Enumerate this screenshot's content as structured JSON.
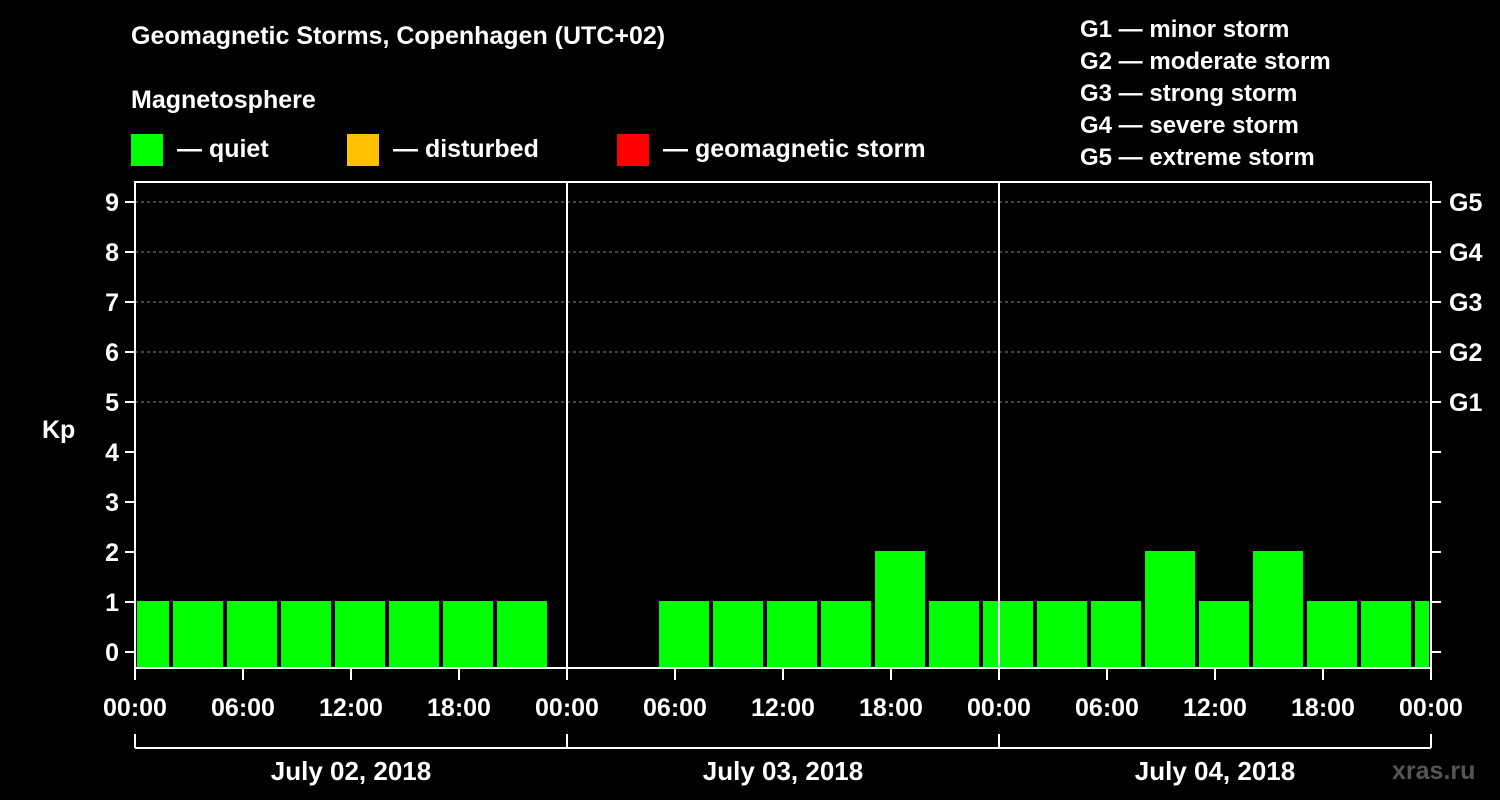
{
  "title": "Geomagnetic Storms, Copenhagen (UTC+02)",
  "magnetosphere": {
    "title": "Magnetosphere",
    "legend": [
      {
        "label": "— quiet",
        "color": "#00ff00"
      },
      {
        "label": "— disturbed",
        "color": "#ffc000"
      },
      {
        "label": "— geomagnetic storm",
        "color": "#ff0000"
      }
    ]
  },
  "storm_scale": [
    "G1 — minor storm",
    "G2 — moderate storm",
    "G3 — strong storm",
    "G4 — severe storm",
    "G5 — extreme storm"
  ],
  "watermark": "xras.ru",
  "chart_data": {
    "type": "bar",
    "title": "Geomagnetic Storms, Copenhagen (UTC+02)",
    "ylabel": "Kp",
    "ylim": [
      0,
      9
    ],
    "y_ticks": [
      "0",
      "1",
      "2",
      "3",
      "4",
      "5",
      "6",
      "7",
      "8",
      "9"
    ],
    "right_axis_labels": [
      {
        "kp": 5,
        "label": "G1"
      },
      {
        "kp": 6,
        "label": "G2"
      },
      {
        "kp": 7,
        "label": "G3"
      },
      {
        "kp": 8,
        "label": "G4"
      },
      {
        "kp": 9,
        "label": "G5"
      }
    ],
    "x_range_hours": [
      0,
      72
    ],
    "x_tick_labels": [
      "00:00",
      "06:00",
      "12:00",
      "18:00",
      "00:00",
      "06:00",
      "12:00",
      "18:00",
      "00:00",
      "06:00",
      "12:00",
      "18:00",
      "00:00"
    ],
    "days": [
      "July 02, 2018",
      "July 03, 2018",
      "July 04, 2018"
    ],
    "bars": [
      {
        "start": 0,
        "end": 2,
        "kp": 1
      },
      {
        "start": 2,
        "end": 5,
        "kp": 1
      },
      {
        "start": 5,
        "end": 8,
        "kp": 1
      },
      {
        "start": 8,
        "end": 11,
        "kp": 1
      },
      {
        "start": 11,
        "end": 14,
        "kp": 1
      },
      {
        "start": 14,
        "end": 17,
        "kp": 1
      },
      {
        "start": 17,
        "end": 20,
        "kp": 1
      },
      {
        "start": 20,
        "end": 23,
        "kp": 1
      },
      {
        "start": 29,
        "end": 32,
        "kp": 1
      },
      {
        "start": 32,
        "end": 35,
        "kp": 1
      },
      {
        "start": 35,
        "end": 38,
        "kp": 1
      },
      {
        "start": 38,
        "end": 41,
        "kp": 1
      },
      {
        "start": 41,
        "end": 44,
        "kp": 2
      },
      {
        "start": 44,
        "end": 47,
        "kp": 1
      },
      {
        "start": 47,
        "end": 50,
        "kp": 1
      },
      {
        "start": 50,
        "end": 53,
        "kp": 1
      },
      {
        "start": 53,
        "end": 56,
        "kp": 1
      },
      {
        "start": 56,
        "end": 59,
        "kp": 2
      },
      {
        "start": 59,
        "end": 62,
        "kp": 1
      },
      {
        "start": 62,
        "end": 65,
        "kp": 2
      },
      {
        "start": 65,
        "end": 68,
        "kp": 1
      },
      {
        "start": 68,
        "end": 71,
        "kp": 1
      },
      {
        "start": 71,
        "end": 72,
        "kp": 1
      }
    ],
    "bar_color": "#00ff00"
  }
}
